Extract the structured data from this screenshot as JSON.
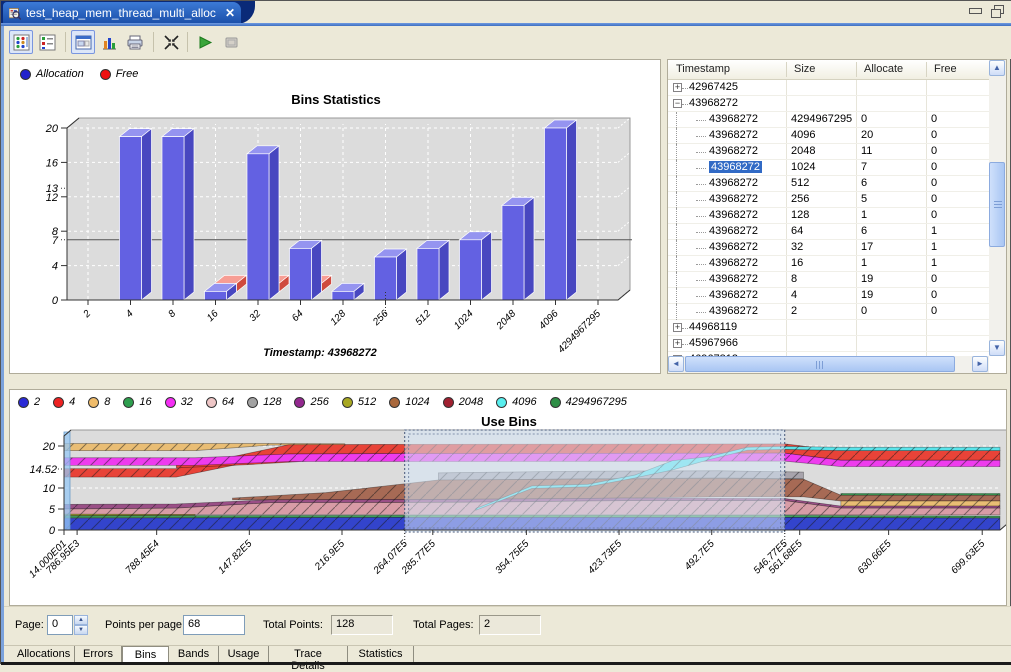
{
  "window": {
    "tab_title": "test_heap_mem_thread_multi_alloc",
    "close_glyph": "✕"
  },
  "toolbar": {
    "icons": [
      "grid-view-icon",
      "list-view-icon",
      "chart-window-view-icon",
      "bar-chart-icon",
      "print-icon",
      "fit-to-window-icon",
      "play-icon",
      "snapshot-disabled-icon"
    ]
  },
  "table": {
    "columns": [
      "Timestamp",
      "Size",
      "Allocate",
      "Free"
    ],
    "rows": [
      {
        "type": "group",
        "expanded": false,
        "timestamp": "42967425"
      },
      {
        "type": "group",
        "expanded": true,
        "timestamp": "43968272"
      },
      {
        "type": "child",
        "timestamp": "43968272",
        "size": "4294967295",
        "allocate": "0",
        "free": "0"
      },
      {
        "type": "child",
        "timestamp": "43968272",
        "size": "4096",
        "allocate": "20",
        "free": "0"
      },
      {
        "type": "child",
        "timestamp": "43968272",
        "size": "2048",
        "allocate": "11",
        "free": "0"
      },
      {
        "type": "child",
        "timestamp": "43968272",
        "size": "1024",
        "allocate": "7",
        "free": "0",
        "selected": true
      },
      {
        "type": "child",
        "timestamp": "43968272",
        "size": "512",
        "allocate": "6",
        "free": "0"
      },
      {
        "type": "child",
        "timestamp": "43968272",
        "size": "256",
        "allocate": "5",
        "free": "0"
      },
      {
        "type": "child",
        "timestamp": "43968272",
        "size": "128",
        "allocate": "1",
        "free": "0"
      },
      {
        "type": "child",
        "timestamp": "43968272",
        "size": "64",
        "allocate": "6",
        "free": "1"
      },
      {
        "type": "child",
        "timestamp": "43968272",
        "size": "32",
        "allocate": "17",
        "free": "1"
      },
      {
        "type": "child",
        "timestamp": "43968272",
        "size": "16",
        "allocate": "1",
        "free": "1"
      },
      {
        "type": "child",
        "timestamp": "43968272",
        "size": "8",
        "allocate": "19",
        "free": "0"
      },
      {
        "type": "child",
        "timestamp": "43968272",
        "size": "4",
        "allocate": "19",
        "free": "0"
      },
      {
        "type": "child",
        "timestamp": "43968272",
        "size": "2",
        "allocate": "0",
        "free": "0"
      },
      {
        "type": "group",
        "expanded": false,
        "timestamp": "44968119"
      },
      {
        "type": "group",
        "expanded": false,
        "timestamp": "45967966"
      },
      {
        "type": "group",
        "expanded": false,
        "timestamp": "46967813"
      }
    ]
  },
  "pager": {
    "page_label": "Page:",
    "page_value": "0",
    "points_per_page_label": "Points per page:",
    "points_per_page_value": "68",
    "total_points_label": "Total Points:",
    "total_points_value": "128",
    "total_pages_label": "Total Pages:",
    "total_pages_value": "2"
  },
  "bottom_tabs": {
    "labels": [
      "Allocations",
      "Errors",
      "Bins",
      "Bands",
      "Usage",
      "Trace Details",
      "Statistics"
    ],
    "active": "Bins"
  },
  "chart_data": [
    {
      "type": "bar",
      "title": "Bins Statistics",
      "caption": "Timestamp: 43968272",
      "legend": [
        {
          "label": "Allocation",
          "color": "#2323cc"
        },
        {
          "label": "Free",
          "color": "#ee1111"
        }
      ],
      "categories": [
        "2",
        "4",
        "8",
        "16",
        "32",
        "64",
        "128",
        "256",
        "512",
        "1024",
        "2048",
        "4096",
        "4294967295"
      ],
      "series": [
        {
          "name": "Allocation",
          "values": [
            0,
            19,
            19,
            1,
            17,
            6,
            1,
            5,
            6,
            7,
            11,
            20,
            0
          ]
        },
        {
          "name": "Free",
          "values": [
            0,
            0,
            0,
            1,
            1,
            1,
            0,
            0,
            0,
            0,
            0,
            0,
            0
          ]
        }
      ],
      "ylim": [
        0,
        21
      ],
      "yticks": [
        0,
        4,
        8,
        12,
        16,
        20
      ],
      "indicator_yticks": [
        7,
        13
      ],
      "marker_line_y": 7,
      "indicator_xtick": "256",
      "grid": true,
      "legend_position": "top-left",
      "bar_colors": {
        "front": "#6361e2",
        "top": "#9594f0",
        "side": "#4847c0"
      },
      "free_colors": {
        "front": "#ef685c",
        "top": "#f79d94",
        "side": "#cf4a3e"
      }
    },
    {
      "type": "area",
      "title": "Use Bins",
      "legend": [
        {
          "label": "2",
          "color": "#2a2ad6"
        },
        {
          "label": "4",
          "color": "#ee2222"
        },
        {
          "label": "8",
          "color": "#f0bc6a"
        },
        {
          "label": "16",
          "color": "#2e9e4e"
        },
        {
          "label": "32",
          "color": "#f42ef4"
        },
        {
          "label": "64",
          "color": "#eec6c6"
        },
        {
          "label": "128",
          "color": "#a2a2a2"
        },
        {
          "label": "256",
          "color": "#93288f"
        },
        {
          "label": "512",
          "color": "#a8a822"
        },
        {
          "label": "1024",
          "color": "#a9683c"
        },
        {
          "label": "2048",
          "color": "#a02030"
        },
        {
          "label": "4096",
          "color": "#58eeee"
        },
        {
          "label": "4294967295",
          "color": "#2e8e46"
        }
      ],
      "ylim": [
        0,
        22
      ],
      "yticks": [
        0,
        5,
        10,
        20
      ],
      "indicator_ytick": "14.52",
      "xticks": [
        {
          "label": "14.000E01",
          "x": 0
        },
        {
          "label": "786.95E3",
          "x": 1.4
        },
        {
          "label": "788.45E4",
          "x": 9.9
        },
        {
          "label": "147.82E5",
          "x": 19.8
        },
        {
          "label": "216.9E5",
          "x": 29.7
        },
        {
          "label": "264.07E5",
          "x": 36.4,
          "dotted": true
        },
        {
          "label": "285.77E5",
          "x": 39.4
        },
        {
          "label": "354.75E5",
          "x": 49.4
        },
        {
          "label": "423.73E5",
          "x": 59.3
        },
        {
          "label": "492.7E5",
          "x": 69.2
        },
        {
          "label": "546.77E5",
          "x": 77.0,
          "dotted": true
        },
        {
          "label": "561.68E5",
          "x": 78.6
        },
        {
          "label": "630.66E5",
          "x": 88.1
        },
        {
          "label": "699.63E5",
          "x": 98.1
        }
      ],
      "selection": {
        "from_pct": 36.4,
        "to_pct": 77.0
      },
      "bands": [
        {
          "bin": "8",
          "color": "#e9bd74",
          "pts": [
            [
              0,
              18.9,
              20.6
            ],
            [
              14,
              18.9,
              20.6
            ],
            [
              22,
              20.2,
              20.6
            ],
            [
              30,
              20.3,
              20.55
            ]
          ]
        },
        {
          "bin": "4",
          "color": "#e84338",
          "pts": [
            [
              0,
              12.6,
              14.6
            ],
            [
              12,
              12.6,
              14.6
            ],
            [
              24,
              18.1,
              20.3
            ],
            [
              36,
              18.2,
              20.4
            ],
            [
              77,
              18.3,
              20.5
            ],
            [
              83,
              16.6,
              18.9
            ],
            [
              100,
              16.6,
              18.9
            ]
          ]
        },
        {
          "bin": "4b",
          "color": "#e84338",
          "pts": [
            [
              12,
              14.8,
              15.4
            ],
            [
              20,
              15.6,
              17.0
            ],
            [
              26,
              16.4,
              17.0
            ]
          ]
        },
        {
          "bin": "32",
          "color": "#ee3cee",
          "pts": [
            [
              0,
              15.4,
              17.2
            ],
            [
              14,
              15.4,
              17.2
            ],
            [
              24,
              16.3,
              18.1
            ],
            [
              36,
              16.3,
              18.2
            ],
            [
              77,
              16.4,
              18.3
            ],
            [
              83,
              15.1,
              16.6
            ],
            [
              100,
              15.1,
              16.6
            ]
          ]
        },
        {
          "bin": "128",
          "color": "#a8a4ac",
          "pts": [
            [
              40,
              11.8,
              13.6
            ],
            [
              55,
              12.2,
              14.0
            ],
            [
              70,
              12.4,
              14.1
            ],
            [
              79,
              12.2,
              13.8
            ]
          ]
        },
        {
          "bin": "1024",
          "color": "#a76a55",
          "pts": [
            [
              18,
              7.2,
              7.6
            ],
            [
              28,
              7.2,
              8.9
            ],
            [
              40,
              7.3,
              11.9
            ],
            [
              55,
              7.5,
              12.1
            ],
            [
              70,
              7.9,
              12.3
            ],
            [
              79,
              7.9,
              12.1
            ],
            [
              83,
              6.9,
              8.3
            ],
            [
              100,
              6.9,
              8.3
            ]
          ]
        },
        {
          "bin": "8r",
          "color": "#e9bd74",
          "pts": [
            [
              83,
              5.7,
              6.9
            ],
            [
              100,
              5.7,
              6.9
            ]
          ]
        },
        {
          "bin": "16r",
          "color": "#3d9e57",
          "pts": [
            [
              83,
              8.3,
              8.7
            ],
            [
              100,
              8.3,
              8.7
            ]
          ]
        },
        {
          "bin": "256",
          "color": "#9a4f86",
          "pts": [
            [
              0,
              5.0,
              6.1
            ],
            [
              12,
              5.2,
              6.2
            ],
            [
              22,
              6.5,
              7.2
            ],
            [
              43,
              6.6,
              7.3
            ],
            [
              60,
              7.0,
              7.6
            ],
            [
              77,
              7.0,
              7.5
            ],
            [
              83,
              5.2,
              5.7
            ],
            [
              100,
              5.2,
              5.7
            ]
          ]
        },
        {
          "bin": "64",
          "color": "#d89ca6",
          "pts": [
            [
              0,
              3.7,
              5.0
            ],
            [
              12,
              3.7,
              5.2
            ],
            [
              22,
              3.7,
              6.5
            ],
            [
              43,
              3.7,
              6.6
            ],
            [
              60,
              3.7,
              7.0
            ],
            [
              77,
              3.7,
              7.0
            ],
            [
              83,
              3.6,
              5.2
            ],
            [
              100,
              3.6,
              5.2
            ]
          ]
        },
        {
          "bin": "512",
          "color": "#a8a238",
          "pts": [
            [
              0,
              3.4,
              3.8
            ],
            [
              14,
              3.5,
              3.7
            ]
          ]
        },
        {
          "bin": "16",
          "color": "#3d9e57",
          "pts": [
            [
              0,
              2.9,
              3.4
            ],
            [
              36,
              3.0,
              3.5
            ],
            [
              77,
              3.0,
              3.5
            ],
            [
              100,
              2.9,
              3.3
            ]
          ]
        },
        {
          "bin": "2",
          "color": "#3344cc",
          "pts": [
            [
              0,
              0,
              2.8
            ],
            [
              36,
              0,
              3.0
            ],
            [
              77,
              0,
              3.0
            ],
            [
              100,
              0,
              2.8
            ]
          ]
        },
        {
          "bin": "4096",
          "color": "#5ae4ea",
          "pts": [
            [
              44,
              4.7,
              5.1
            ],
            [
              50,
              9.9,
              10.5
            ],
            [
              56,
              10.3,
              10.9
            ],
            [
              61,
              12.4,
              13.1
            ],
            [
              65,
              14.3,
              16.5
            ],
            [
              69,
              16.8,
              17.5
            ],
            [
              73,
              19.0,
              19.7
            ],
            [
              77,
              19.2,
              19.9
            ],
            [
              83,
              18.9,
              19.7
            ],
            [
              100,
              18.9,
              19.7
            ]
          ]
        }
      ]
    }
  ]
}
